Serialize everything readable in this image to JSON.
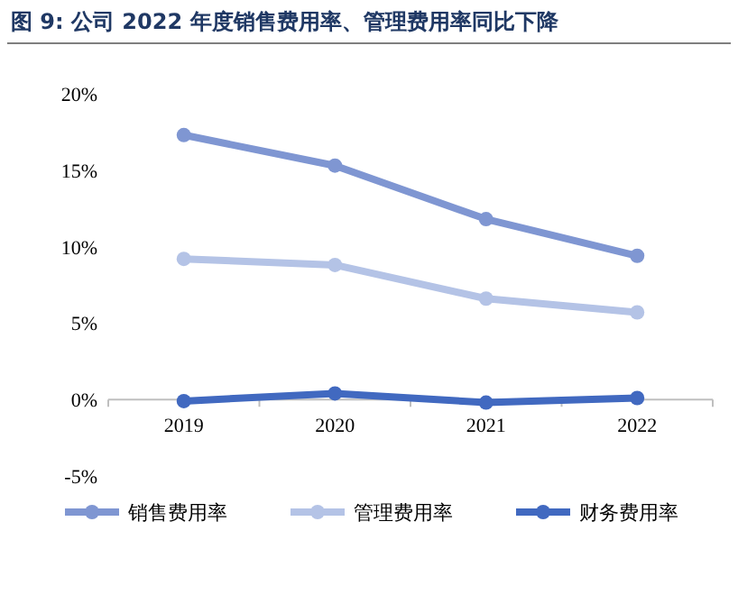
{
  "chart_data": {
    "type": "line",
    "title": "图 9: 公司 2022 年度销售费用率、管理费用率同比下降",
    "categories": [
      "2019",
      "2020",
      "2021",
      "2022"
    ],
    "series": [
      {
        "name": "销售费用率",
        "color": "#7f96d2",
        "values": [
          17.3,
          15.3,
          11.8,
          9.4
        ]
      },
      {
        "name": "管理费用率",
        "color": "#b4c3e6",
        "values": [
          9.2,
          8.8,
          6.6,
          5.7
        ]
      },
      {
        "name": "财务费用率",
        "color": "#4169c0",
        "values": [
          -0.1,
          0.4,
          -0.2,
          0.1
        ]
      }
    ],
    "ylim": [
      -5,
      20
    ],
    "yticks": [
      {
        "value": -5,
        "label": "-5%"
      },
      {
        "value": 0,
        "label": "0%"
      },
      {
        "value": 5,
        "label": "5%"
      },
      {
        "value": 10,
        "label": "10%"
      },
      {
        "value": 15,
        "label": "15%"
      },
      {
        "value": 20,
        "label": "20%"
      }
    ],
    "marker": "circle",
    "line_style": "solid",
    "legend": "bottom",
    "grid": false
  }
}
